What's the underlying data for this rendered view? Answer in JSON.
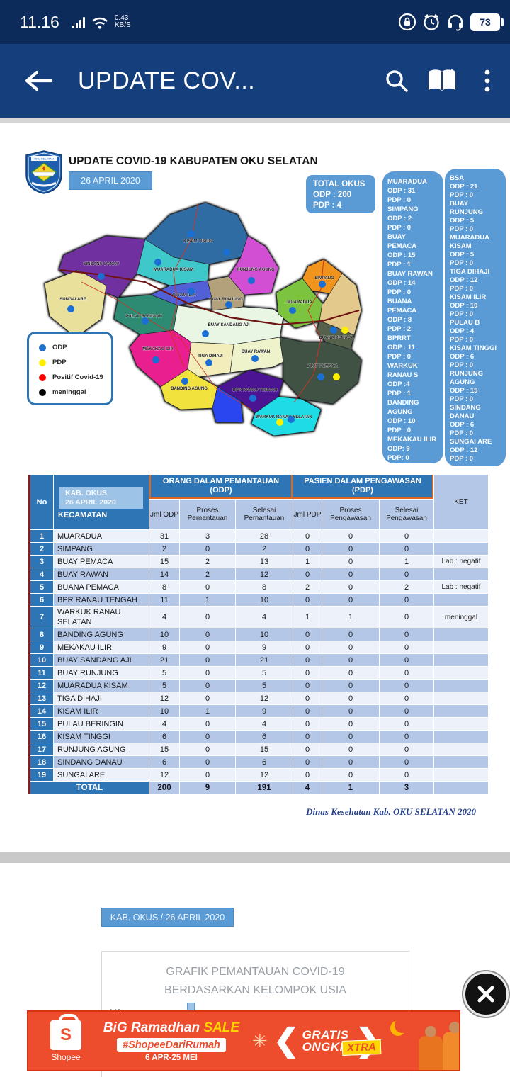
{
  "status_bar": {
    "time": "11.16",
    "network_speed": "0.43",
    "network_unit": "KB/S",
    "battery_level": "73",
    "icons": [
      "signal-icon",
      "wifi-icon",
      "rotation-lock-icon",
      "alarm-icon",
      "headset-icon",
      "battery-icon"
    ]
  },
  "app_bar": {
    "title": "UPDATE COV...",
    "icons": [
      "back-arrow-icon",
      "search-icon",
      "reader-book-icon",
      "overflow-menu-icon"
    ]
  },
  "infographic": {
    "title": "UPDATE COVID-19 KABUPATEN OKU SELATAN",
    "date_badge": "26 APRIL 2020",
    "total_box": {
      "title": "TOTAL OKUS",
      "odp": "ODP : 200",
      "pdp": "PDP : 4"
    },
    "legend": [
      {
        "label": "ODP",
        "color": "#1e73d2"
      },
      {
        "label": "PDP",
        "color": "#ffee00"
      },
      {
        "label": "Positif Covid-19",
        "color": "#fe0000"
      },
      {
        "label": "meninggal",
        "color": "#000000"
      }
    ],
    "panel_left": {
      "lines": [
        "MUARADUA",
        "ODP : 31",
        "PDP : 0",
        "SIMPANG",
        "ODP : 2",
        "PDP : 0",
        "BUAY",
        "PEMACA",
        "ODP : 15",
        "PDP : 1",
        "BUAY RAWAN",
        "ODP : 14",
        "PDP : 0",
        "BUANA",
        "PEMACA",
        "ODP : 8",
        "PDP : 2",
        "BPRRT",
        "ODP : 11",
        "PDP : 0",
        "WARKUK",
        "RANAU S",
        "ODP :4",
        "PDP : 1",
        "BANDING",
        "AGUNG",
        "ODP : 10",
        "PDP : 0",
        "MEKAKAU ILIR",
        "ODP: 9",
        "PDP: 0"
      ]
    },
    "panel_right": {
      "lines": [
        "BSA",
        "ODP : 21",
        "PDP : 0",
        "BUAY",
        "RUNJUNG",
        "ODP : 5",
        "PDP : 0",
        "MUARADUA",
        "KISAM",
        "ODP : 5",
        "PDP : 0",
        "TIGA DIHAJI",
        "ODP : 12",
        "PDP : 0",
        "KISAM ILIR",
        "ODP : 10",
        "PDP : 0",
        "PULAU B",
        "ODP : 4",
        "PDP : 0",
        "KISAM TINGGI",
        "ODP : 6",
        "PDP : 0",
        "RUNJUNG",
        "AGUNG",
        "ODP : 15",
        "PDP : 0",
        "SINDANG",
        "DANAU",
        "ODP : 6",
        "PDP : 0",
        "SUNGAI ARE",
        "ODP : 12",
        "PDP : 0"
      ]
    },
    "map": {
      "dot_blue": "#1a6fd4",
      "dot_yellow": "#ffee00",
      "regions": [
        {
          "id": "kisam_tinggi",
          "name": "KISAM TINGGI",
          "color": "#2e6ca3"
        },
        {
          "id": "sindang_danau",
          "name": "SINDANG DANAU",
          "color": "#7030a0"
        },
        {
          "id": "sungai_are",
          "name": "SUNGAI ARE",
          "color": "#e9e19b"
        },
        {
          "id": "muaradua_kisam",
          "name": "MUARADUA KISAM",
          "color": "#3fc8c9"
        },
        {
          "id": "kisam_ilir",
          "name": "KISAM ILIR",
          "color": "#5160d6"
        },
        {
          "id": "pulau_beringin",
          "name": "PULAU BERINGIN",
          "color": "#2c8b72"
        },
        {
          "id": "runjung_agung",
          "name": "RUNJUNG AGUNG",
          "color": "#d24fd4"
        },
        {
          "id": "buay_runjung",
          "name": "BUAY RUNJUNG",
          "color": "#b2a17a"
        },
        {
          "id": "buay_sandang_aji",
          "name": "BUAY SANDANG AJI",
          "color": "#eaf6e4"
        },
        {
          "id": "simpang",
          "name": "SIMPANG",
          "color": "#f0941e"
        },
        {
          "id": "east_tan",
          "name": "",
          "color": "#e4c98d"
        },
        {
          "id": "muaradua",
          "name": "MUARADUA",
          "color": "#7cc33f"
        },
        {
          "id": "buana_pemaca",
          "name": "BUANA PEMACA",
          "color": "#55614a"
        },
        {
          "id": "mekakau_ilir",
          "name": "MEKAKAU ILIR",
          "color": "#ea1f8f"
        },
        {
          "id": "tiga_dihaji",
          "name": "TIGA DIHAJI",
          "color": "#f2edbb"
        },
        {
          "id": "buay_rawan",
          "name": "BUAY RAWAN",
          "color": "#eef3cb"
        },
        {
          "id": "buay_pemaca",
          "name": "BUAY PEMACA",
          "color": "#3f5244"
        },
        {
          "id": "banding_agung",
          "name": "BANDING AGUNG",
          "color": "#f2e23e"
        },
        {
          "id": "danau_ranau",
          "name": "",
          "color": "#2a46f0"
        },
        {
          "id": "bpr_ranau_tengah",
          "name": "BPR RANAU TENGAH",
          "color": "#4a1492"
        },
        {
          "id": "warkuk_ranau_selatan",
          "name": "WARKUK RANAU SELATAN",
          "color": "#1fdbe6"
        }
      ]
    },
    "footer": "Dinas Kesehatan Kab. OKU SELATAN 2020"
  },
  "table": {
    "col_no": "No",
    "kab_line1": "KAB. OKUS",
    "kab_line2": "26 APRIL 2020",
    "col_kecamatan": "KECAMATAN",
    "group_odp": "ORANG DALAM PEMANTAUAN (ODP)",
    "group_pdp": "PASIEN DALAM PENGAWASAN (PDP)",
    "sub_headers": [
      "Jml ODP",
      "Proses Pemantauan",
      "Selesai Pemantauan",
      "Jml PDP",
      "Proses Pengawasan",
      "Selesai Pengawasan",
      "KET"
    ],
    "rows": [
      [
        "1",
        "MUARADUA",
        "31",
        "3",
        "28",
        "0",
        "0",
        "0",
        ""
      ],
      [
        "2",
        "SIMPANG",
        "2",
        "0",
        "2",
        "0",
        "0",
        "0",
        ""
      ],
      [
        "3",
        "BUAY PEMACA",
        "15",
        "2",
        "13",
        "1",
        "0",
        "1",
        "Lab : negatif"
      ],
      [
        "4",
        "BUAY RAWAN",
        "14",
        "2",
        "12",
        "0",
        "0",
        "0",
        ""
      ],
      [
        "5",
        "BUANA PEMACA",
        "8",
        "0",
        "8",
        "2",
        "0",
        "2",
        "Lab : negatif"
      ],
      [
        "6",
        "BPR RANAU TENGAH",
        "11",
        "1",
        "10",
        "0",
        "0",
        "0",
        ""
      ],
      [
        "7",
        "WARKUK RANAU SELATAN",
        "4",
        "0",
        "4",
        "1",
        "1",
        "0",
        "meninggal"
      ],
      [
        "8",
        "BANDING AGUNG",
        "10",
        "0",
        "10",
        "0",
        "0",
        "0",
        ""
      ],
      [
        "9",
        "MEKAKAU ILIR",
        "9",
        "0",
        "9",
        "0",
        "0",
        "0",
        ""
      ],
      [
        "10",
        "BUAY SANDANG AJI",
        "21",
        "0",
        "21",
        "0",
        "0",
        "0",
        ""
      ],
      [
        "11",
        "BUAY RUNJUNG",
        "5",
        "0",
        "5",
        "0",
        "0",
        "0",
        ""
      ],
      [
        "12",
        "MUARADUA KISAM",
        "5",
        "0",
        "5",
        "0",
        "0",
        "0",
        ""
      ],
      [
        "13",
        "TIGA DIHAJI",
        "12",
        "0",
        "12",
        "0",
        "0",
        "0",
        ""
      ],
      [
        "14",
        "KISAM ILIR",
        "10",
        "1",
        "9",
        "0",
        "0",
        "0",
        ""
      ],
      [
        "15",
        "PULAU BERINGIN",
        "4",
        "0",
        "4",
        "0",
        "0",
        "0",
        ""
      ],
      [
        "16",
        "KISAM TINGGI",
        "6",
        "0",
        "6",
        "0",
        "0",
        "0",
        ""
      ],
      [
        "17",
        "RUNJUNG AGUNG",
        "15",
        "0",
        "15",
        "0",
        "0",
        "0",
        ""
      ],
      [
        "18",
        "SINDANG DANAU",
        "6",
        "0",
        "6",
        "0",
        "0",
        "0",
        ""
      ],
      [
        "19",
        "SUNGAI ARE",
        "12",
        "0",
        "12",
        "0",
        "0",
        "0",
        ""
      ]
    ],
    "total_row": {
      "label": "TOTAL",
      "values": [
        "200",
        "9",
        "191",
        "4",
        "1",
        "3",
        ""
      ]
    }
  },
  "section2": {
    "badge": "KAB. OKUS / 26 APRIL 2020",
    "chart_title_line1": "GRAFIK PEMANTAUAN COVID-19",
    "chart_title_line2": "BERDASARKAN KELOMPOK USIA",
    "y_tick": "140"
  },
  "chart_data": {
    "type": "bar",
    "title": "GRAFIK PEMANTAUAN COVID-19 BERDASARKAN KELOMPOK USIA",
    "y_ticks_visible": [
      140
    ]
  },
  "ad": {
    "brand": "Shopee",
    "headline": "BiG Ramadhan",
    "headline_accent": "SALE",
    "hashtag": "#ShopeeDariRumah",
    "period": "6 APR-25 MEI",
    "offer_line1": "GRATIS",
    "offer_line2": "ONGKIR",
    "offer_badge": "XTRA",
    "adchoices": "▷",
    "brand_color": "#ee4d2d"
  }
}
